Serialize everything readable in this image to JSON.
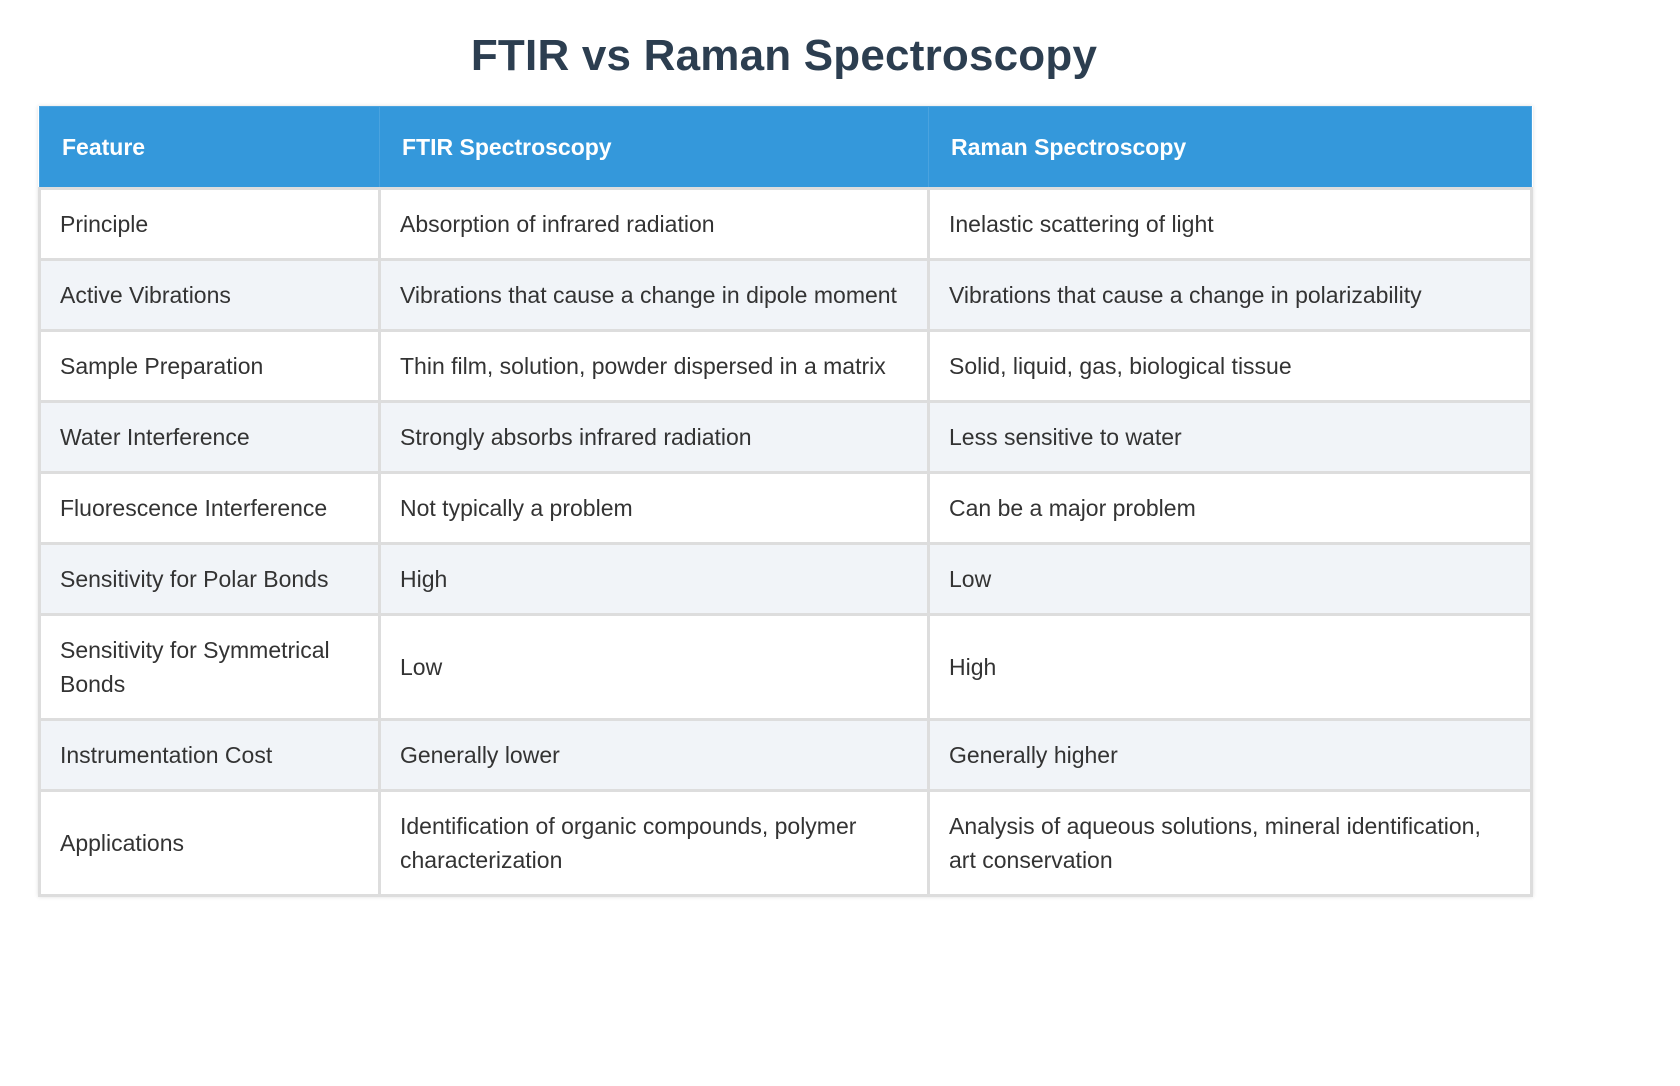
{
  "title": "FTIR vs Raman Spectroscopy",
  "colors": {
    "title": "#2c3e50",
    "header_bg": "#3498db",
    "header_text": "#ffffff",
    "row_alt_bg": "#f1f4f8",
    "border": "#dddddd"
  },
  "table": {
    "headers": [
      "Feature",
      "FTIR Spectroscopy",
      "Raman Spectroscopy"
    ],
    "rows": [
      [
        "Principle",
        "Absorption of infrared radiation",
        "Inelastic scattering of light"
      ],
      [
        "Active Vibrations",
        "Vibrations that cause a change in dipole moment",
        "Vibrations that cause a change in polarizability"
      ],
      [
        "Sample Preparation",
        "Thin film, solution, powder dispersed in a matrix",
        "Solid, liquid, gas, biological tissue"
      ],
      [
        "Water Interference",
        "Strongly absorbs infrared radiation",
        "Less sensitive to water"
      ],
      [
        "Fluorescence Interference",
        "Not typically a problem",
        "Can be a major problem"
      ],
      [
        "Sensitivity for Polar Bonds",
        "High",
        "Low"
      ],
      [
        "Sensitivity for Symmetrical Bonds",
        "Low",
        "High"
      ],
      [
        "Instrumentation Cost",
        "Generally lower",
        "Generally higher"
      ],
      [
        "Applications",
        "Identification of organic compounds, polymer characterization",
        "Analysis of aqueous solutions, mineral identification, art conservation"
      ]
    ]
  }
}
